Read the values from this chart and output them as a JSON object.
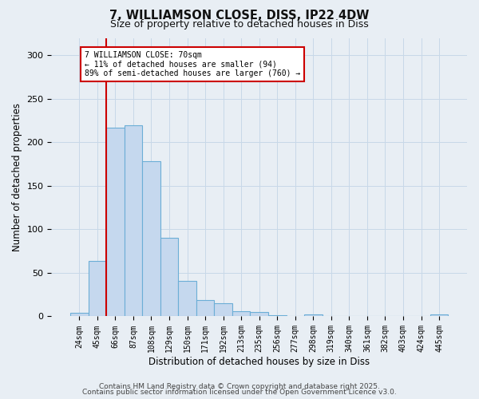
{
  "title_line1": "7, WILLIAMSON CLOSE, DISS, IP22 4DW",
  "title_line2": "Size of property relative to detached houses in Diss",
  "xlabel": "Distribution of detached houses by size in Diss",
  "ylabel": "Number of detached properties",
  "bar_color": "#c5d8ee",
  "bar_edge_color": "#6baed6",
  "grid_color": "#c8d8e8",
  "background_color": "#e8eef4",
  "plot_bg_color": "#e8eef4",
  "vline_color": "#cc0000",
  "annotation_text": "7 WILLIAMSON CLOSE: 70sqm\n← 11% of detached houses are smaller (94)\n89% of semi-detached houses are larger (760) →",
  "annotation_box_color": "#ffffff",
  "annotation_box_edge": "#cc0000",
  "categories": [
    "24sqm",
    "45sqm",
    "66sqm",
    "87sqm",
    "108sqm",
    "129sqm",
    "150sqm",
    "171sqm",
    "192sqm",
    "213sqm",
    "235sqm",
    "256sqm",
    "277sqm",
    "298sqm",
    "319sqm",
    "340sqm",
    "361sqm",
    "382sqm",
    "403sqm",
    "424sqm",
    "445sqm"
  ],
  "values": [
    4,
    64,
    217,
    220,
    178,
    90,
    41,
    19,
    15,
    6,
    5,
    1,
    0,
    2,
    0,
    0,
    0,
    0,
    0,
    0,
    2
  ],
  "ylim": [
    0,
    320
  ],
  "yticks": [
    0,
    50,
    100,
    150,
    200,
    250,
    300
  ],
  "vline_index": 1.5,
  "footer_line1": "Contains HM Land Registry data © Crown copyright and database right 2025.",
  "footer_line2": "Contains public sector information licensed under the Open Government Licence v3.0."
}
